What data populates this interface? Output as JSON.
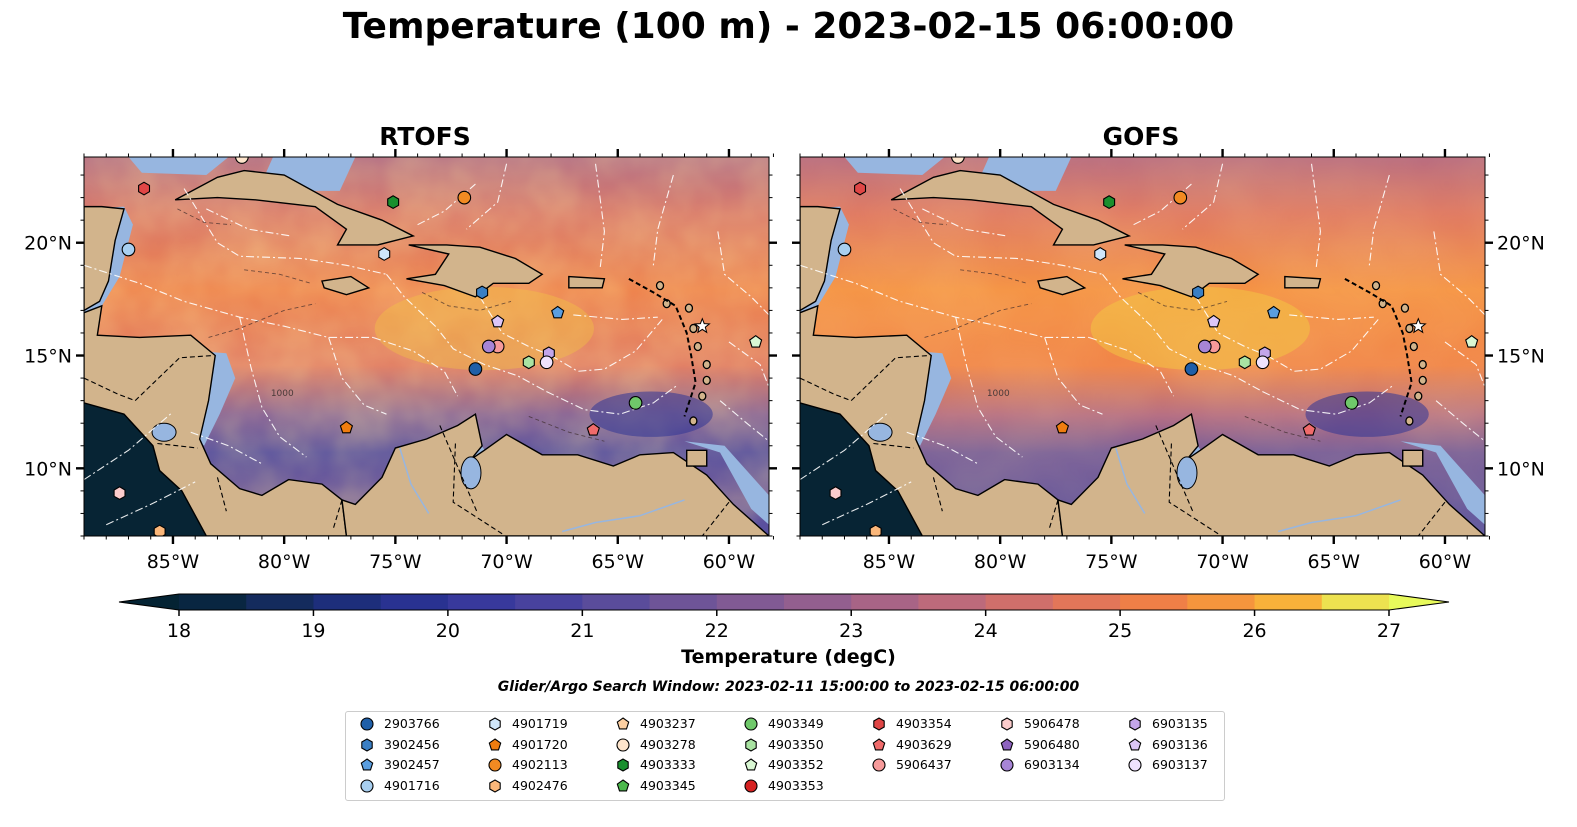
{
  "title": "Temperature (100 m) - 2023-02-15 06:00:00",
  "panels": [
    {
      "key": "rtofs",
      "title": "RTOFS"
    },
    {
      "key": "gofs",
      "title": "GOFS"
    }
  ],
  "map": {
    "lon_range": [
      -89,
      -58.2
    ],
    "lat_range": [
      7,
      23.8
    ],
    "lon_ticks": [
      "85°W",
      "80°W",
      "75°W",
      "70°W",
      "65°W",
      "60°W"
    ],
    "lon_tick_values": [
      -85,
      -80,
      -75,
      -70,
      -65,
      -60
    ],
    "lat_ticks": [
      "20°N",
      "15°N",
      "10°N"
    ],
    "lat_tick_values": [
      20,
      15,
      10
    ],
    "contour_label": "1000",
    "colors": {
      "land": "#d2b48c",
      "shallow_water": "#97b6e0",
      "eez_lines": "#ffffff",
      "coastline": "#000000"
    }
  },
  "colorbar": {
    "label": "Temperature (degC)",
    "min": 18,
    "max": 27,
    "step": 0.5,
    "ticks": [
      "18",
      "19",
      "20",
      "21",
      "22",
      "23",
      "24",
      "25",
      "26",
      "27"
    ],
    "tick_values": [
      18,
      19,
      20,
      21,
      22,
      23,
      24,
      25,
      26,
      27
    ],
    "colormap": "thermal",
    "extend": "both"
  },
  "search_window": "Glider/Argo Search Window: 2023-02-11 15:00:00 to 2023-02-15 06:00:00",
  "legend": {
    "columns": [
      [
        {
          "id": "2903766",
          "marker": "circle",
          "color": "#1f5fa8"
        },
        {
          "id": "3902456",
          "marker": "hexagon",
          "color": "#3a7fc4"
        },
        {
          "id": "3902457",
          "marker": "pentagon",
          "color": "#5a9ee0"
        },
        {
          "id": "4901716",
          "marker": "circle",
          "color": "#a8cff0"
        }
      ],
      [
        {
          "id": "4901719",
          "marker": "hexagon",
          "color": "#cfe6fa"
        },
        {
          "id": "4901720",
          "marker": "pentagon",
          "color": "#f07d0f"
        },
        {
          "id": "4902113",
          "marker": "circle",
          "color": "#f28a22"
        },
        {
          "id": "4902476",
          "marker": "hexagon",
          "color": "#fbb77a"
        }
      ],
      [
        {
          "id": "4903237",
          "marker": "pentagon",
          "color": "#fdd0a2"
        },
        {
          "id": "4903278",
          "marker": "circle",
          "color": "#fee5cc"
        },
        {
          "id": "4903333",
          "marker": "hexagon",
          "color": "#1a8f2e"
        },
        {
          "id": "4903345",
          "marker": "pentagon",
          "color": "#4cb84c"
        }
      ],
      [
        {
          "id": "4903349",
          "marker": "circle",
          "color": "#6fc86a"
        },
        {
          "id": "4903350",
          "marker": "hexagon",
          "color": "#a9e3a2"
        },
        {
          "id": "4903352",
          "marker": "pentagon",
          "color": "#d9f7d3"
        },
        {
          "id": "4903353",
          "marker": "circle",
          "color": "#d62222"
        }
      ],
      [
        {
          "id": "4903354",
          "marker": "hexagon",
          "color": "#e04646"
        },
        {
          "id": "4903629",
          "marker": "pentagon",
          "color": "#f06b6b"
        },
        {
          "id": "5906437",
          "marker": "circle",
          "color": "#f69a9a"
        }
      ],
      [
        {
          "id": "5906478",
          "marker": "hexagon",
          "color": "#fbcccc"
        },
        {
          "id": "5906480",
          "marker": "pentagon",
          "color": "#8e63c0"
        },
        {
          "id": "6903134",
          "marker": "circle",
          "color": "#a785d6"
        }
      ],
      [
        {
          "id": "6903135",
          "marker": "hexagon",
          "color": "#c3a6ea"
        },
        {
          "id": "6903136",
          "marker": "pentagon",
          "color": "#dcc6f7"
        },
        {
          "id": "6903137",
          "marker": "circle",
          "color": "#efe2fd"
        }
      ]
    ]
  },
  "platforms": [
    {
      "id": "2903766",
      "lon": -71.4,
      "lat": 14.4
    },
    {
      "id": "3902456",
      "lon": -71.1,
      "lat": 17.8
    },
    {
      "id": "3902457",
      "lon": -67.7,
      "lat": 16.9
    },
    {
      "id": "4901716",
      "lon": -87.0,
      "lat": 19.7
    },
    {
      "id": "4901719",
      "lon": -75.5,
      "lat": 19.5
    },
    {
      "id": "4901720",
      "lon": -77.2,
      "lat": 11.8
    },
    {
      "id": "4902113",
      "lon": -71.9,
      "lat": 22.0
    },
    {
      "id": "4902476",
      "lon": -85.6,
      "lat": 7.2
    },
    {
      "id": "4903278",
      "lon": -81.9,
      "lat": 23.8
    },
    {
      "id": "4903333",
      "lon": -75.1,
      "lat": 21.8
    },
    {
      "id": "4903349",
      "lon": -64.2,
      "lat": 12.9
    },
    {
      "id": "4903350",
      "lon": -69.0,
      "lat": 14.7
    },
    {
      "id": "4903352",
      "lon": -58.8,
      "lat": 15.6
    },
    {
      "id": "4903354",
      "lon": -86.3,
      "lat": 22.4
    },
    {
      "id": "4903629",
      "lon": -66.1,
      "lat": 11.7
    },
    {
      "id": "5906437",
      "lon": -70.4,
      "lat": 15.4
    },
    {
      "id": "5906478",
      "lon": -87.4,
      "lat": 8.9
    },
    {
      "id": "6903134",
      "lon": -70.8,
      "lat": 15.4
    },
    {
      "id": "6903135",
      "lon": -68.1,
      "lat": 15.1
    },
    {
      "id": "6903136",
      "lon": -70.4,
      "lat": 16.5
    },
    {
      "id": "6903137",
      "lon": -68.2,
      "lat": 14.7
    }
  ]
}
